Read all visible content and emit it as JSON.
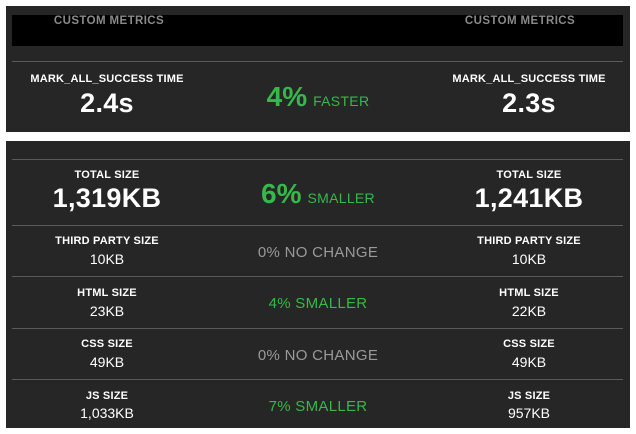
{
  "top": {
    "header": {
      "left": "CUSTOM METRICS",
      "right": "CUSTOM METRICS"
    },
    "metric": {
      "label_left": "MARK_ALL_SUCCESS TIME",
      "value_left": "2.4s",
      "percent": "4%",
      "verdict": "FASTER",
      "label_right": "MARK_ALL_SUCCESS TIME",
      "value_right": "2.3s"
    }
  },
  "bottom": {
    "total": {
      "label_left": "TOTAL SIZE",
      "value_left": "1,319KB",
      "percent": "6%",
      "verdict": "SMALLER",
      "label_right": "TOTAL SIZE",
      "value_right": "1,241KB"
    },
    "rows": [
      {
        "label": "THIRD PARTY SIZE",
        "left": "10KB",
        "change": "0% NO CHANGE",
        "right": "10KB"
      },
      {
        "label": "HTML SIZE",
        "left": "23KB",
        "change": "4% SMALLER",
        "right": "22KB"
      },
      {
        "label": "CSS SIZE",
        "left": "49KB",
        "change": "0% NO CHANGE",
        "right": "49KB"
      },
      {
        "label": "JS SIZE",
        "left": "1,033KB",
        "change": "7% SMALLER",
        "right": "957KB"
      }
    ]
  },
  "colors": {
    "panel": "#262626",
    "improved": "#35b94a",
    "unchanged": "#9a9a9a",
    "header_bar": "#000000"
  }
}
